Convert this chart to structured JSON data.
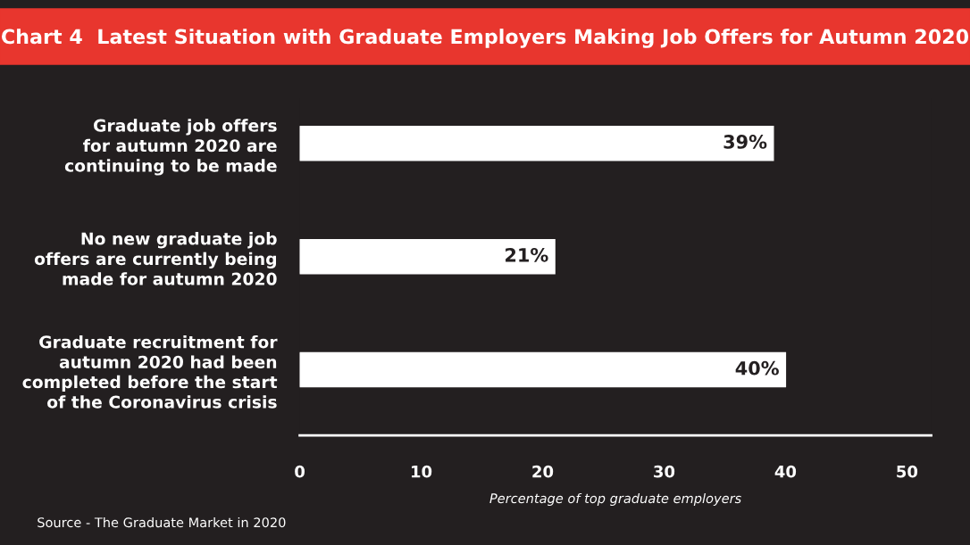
{
  "chart_data": {
    "type": "bar",
    "orientation": "horizontal",
    "title": "Chart 4  Latest Situation with Graduate Employers Making Job Offers for Autumn 2020",
    "categories": [
      "Graduate job offers\nfor autumn 2020 are\ncontinuing to be made",
      "No new graduate job\noffers are currently being\nmade for autumn 2020",
      "Graduate recruitment for\nautumn 2020 had been\ncompleted before the start\nof the Coronavirus crisis"
    ],
    "values": [
      39,
      21,
      40
    ],
    "value_labels": [
      "39%",
      "21%",
      "40%"
    ],
    "color": "#ffffff",
    "xlim": [
      0,
      52
    ],
    "xticks": [
      0,
      10,
      20,
      30,
      40,
      50
    ],
    "xlabel": "Percentage of top graduate employers",
    "grid": false,
    "annotations": [
      "Source - The Graduate Market in 2020"
    ]
  }
}
